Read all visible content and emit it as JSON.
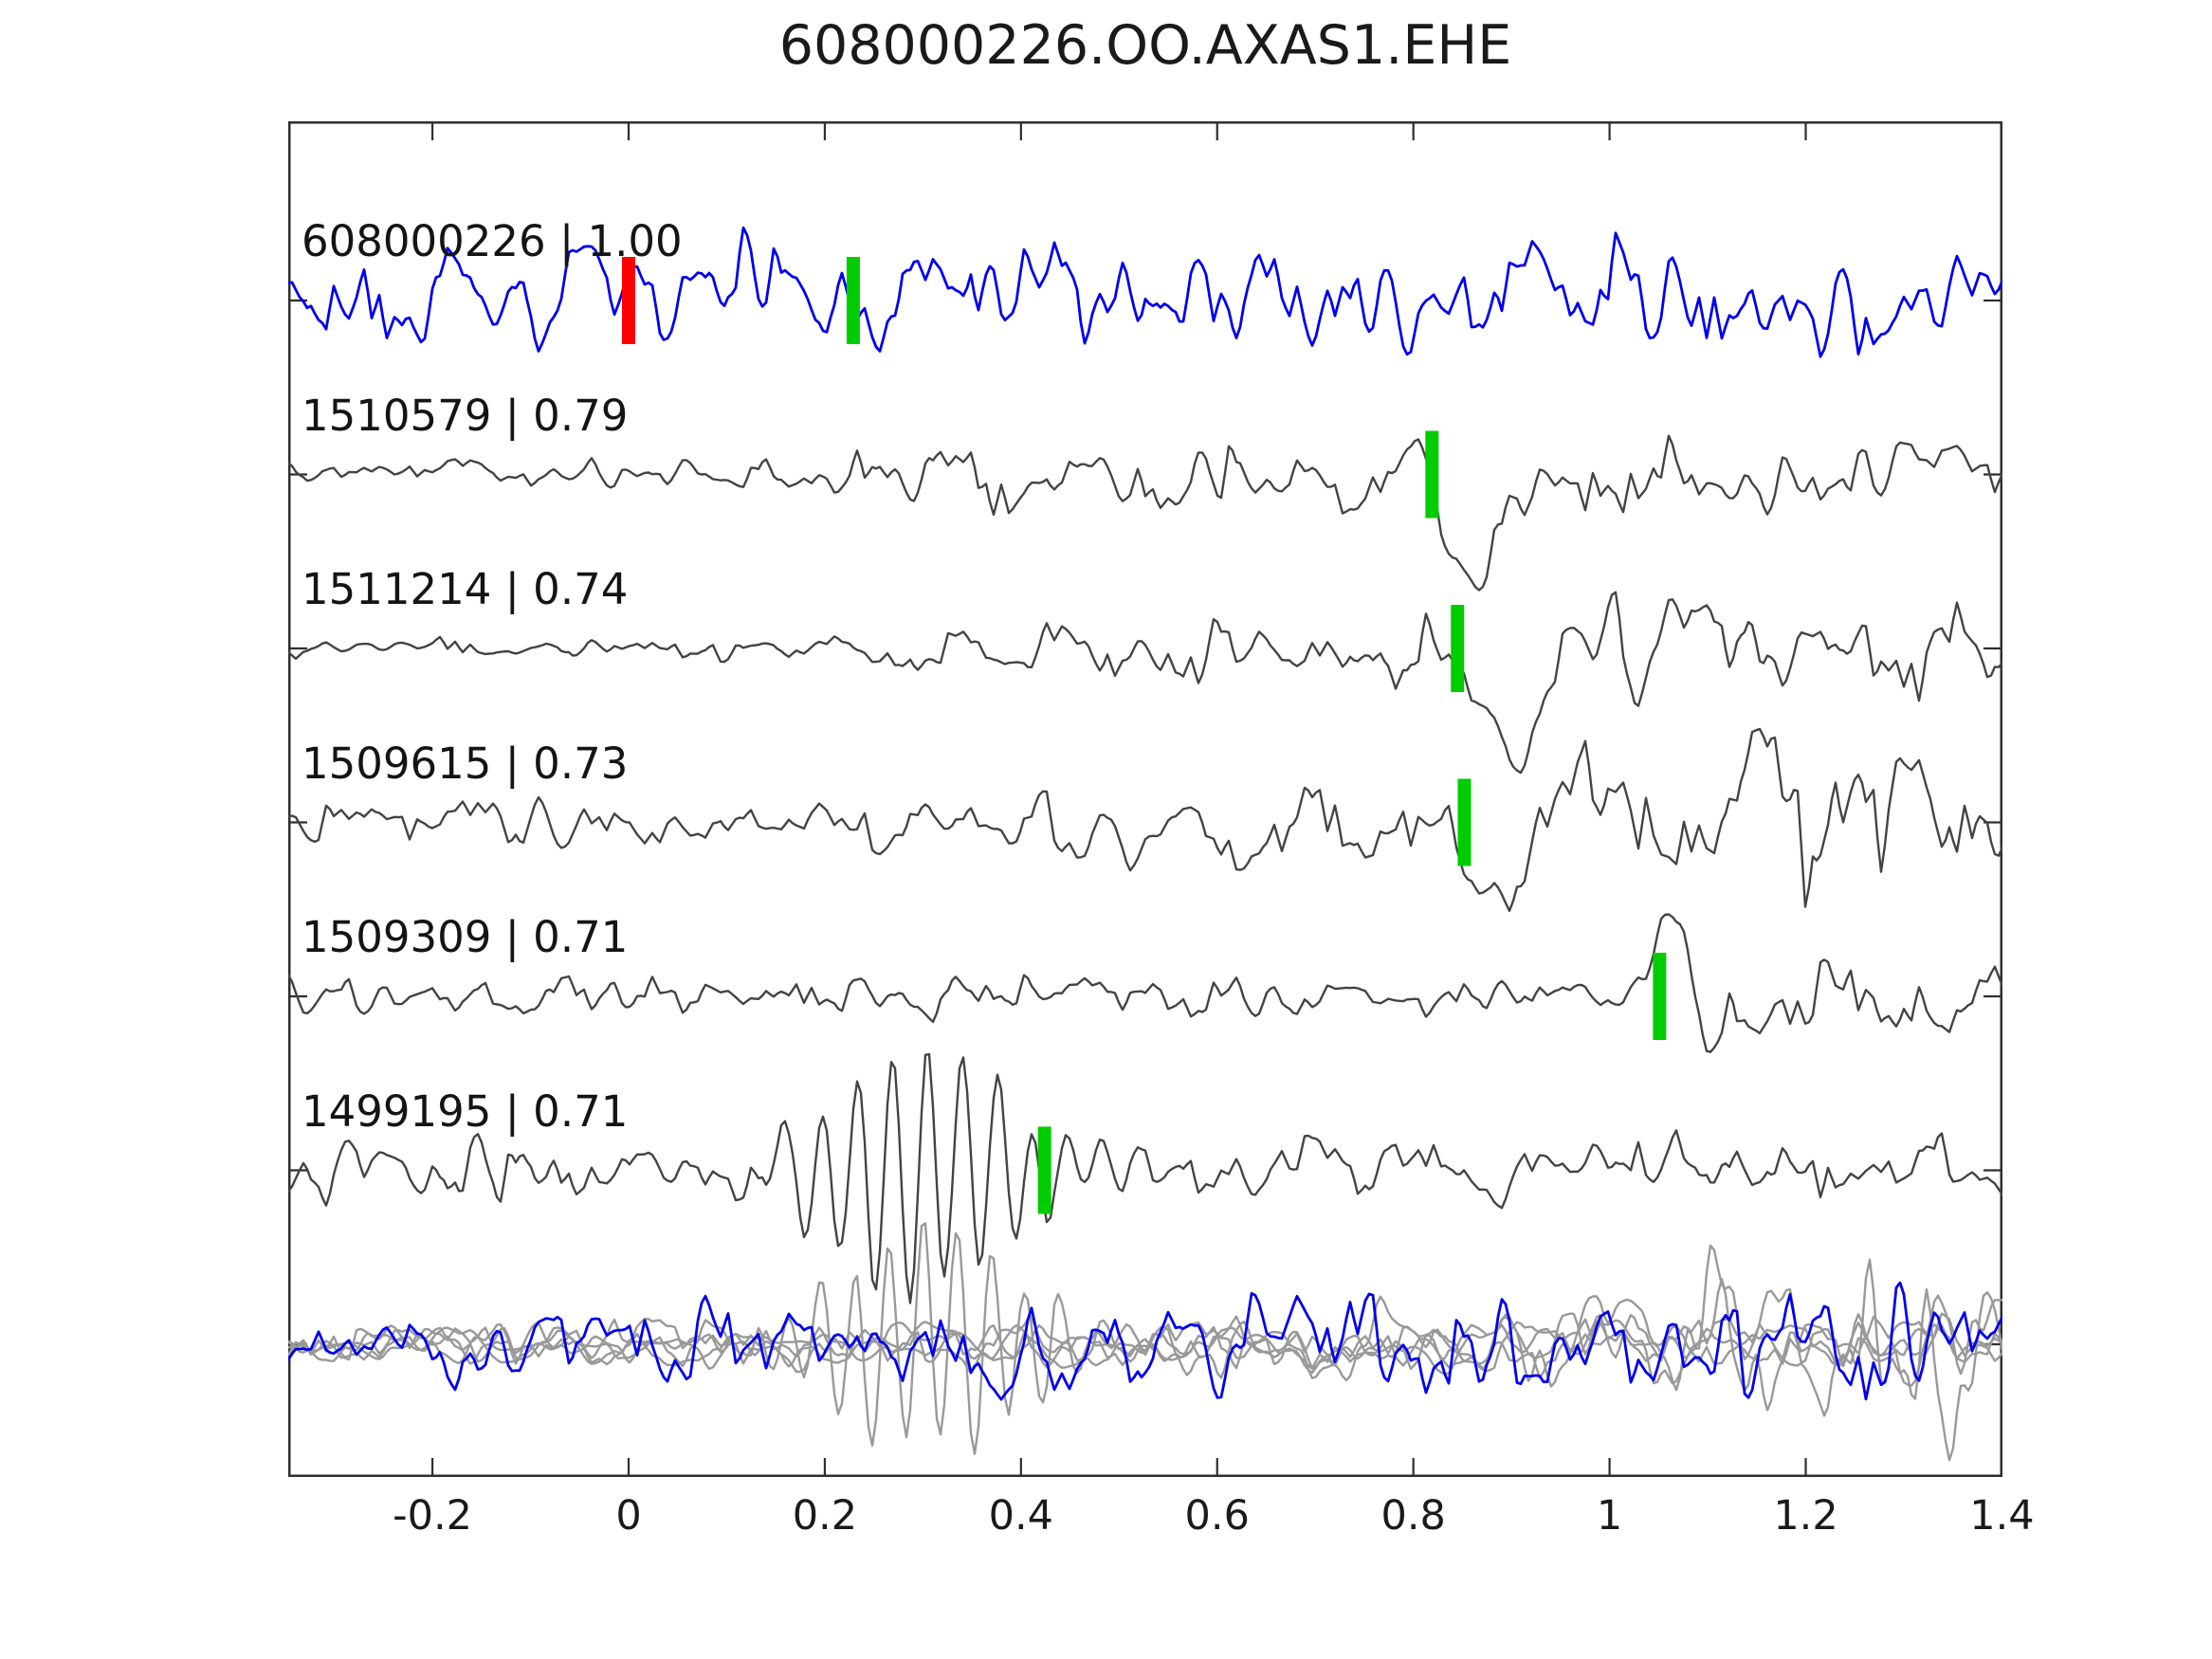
{
  "chart_data": {
    "type": "line",
    "kind": "seismic-waveform-template-matching",
    "title": "608000226.OO.AXAS1.EHE",
    "xlabel": "",
    "ylabel": "",
    "x_range": [
      -0.347,
      1.4
    ],
    "grid": false,
    "legend": "none",
    "x_ticks": [
      {
        "value": -0.2,
        "label": "-0.2"
      },
      {
        "value": 0,
        "label": "0"
      },
      {
        "value": 0.2,
        "label": "0.2"
      },
      {
        "value": 0.4,
        "label": "0.4"
      },
      {
        "value": 0.6,
        "label": "0.6"
      },
      {
        "value": 0.8,
        "label": "0.8"
      },
      {
        "value": 1,
        "label": "1"
      },
      {
        "value": 1.2,
        "label": "1.2"
      },
      {
        "value": 1.4,
        "label": "1.4"
      }
    ],
    "colors": {
      "template_trace": "#0000ee",
      "detection_trace": "#434343",
      "overlay_trace": "#999999",
      "pick_marker": "#00cc00",
      "origin_marker": "#ff0000",
      "axis": "#2e2e2e",
      "text": "#1a1a1a"
    },
    "traces": [
      {
        "label": "608000226 | 1.00",
        "id": "608000226",
        "correlation": "1.00",
        "color": "#0000ee",
        "lw": 2.8,
        "seed": 101,
        "g1": 5,
        "g2": 2,
        "env": [
          [
            -0.35,
            48
          ],
          [
            0.25,
            55
          ],
          [
            0.55,
            50
          ],
          [
            0.8,
            58
          ],
          [
            1.05,
            52
          ],
          [
            1.4,
            50
          ]
        ],
        "pulses": [],
        "bursts": [],
        "markers": [
          {
            "x": 0.0,
            "color": "#ff0000"
          },
          {
            "x": 0.229,
            "color": "#00cc00"
          }
        ]
      },
      {
        "label": "1510579 | 0.79",
        "id": "1510579",
        "correlation": "0.79",
        "color": "#434343",
        "lw": 2.4,
        "seed": 202,
        "g1": 5,
        "g2": 2,
        "env": [
          [
            -0.35,
            13
          ],
          [
            0.2,
            14
          ],
          [
            0.28,
            32
          ],
          [
            0.4,
            36
          ],
          [
            0.6,
            33
          ],
          [
            0.75,
            30
          ],
          [
            0.83,
            22
          ],
          [
            0.92,
            38
          ],
          [
            1.05,
            38
          ],
          [
            1.2,
            32
          ],
          [
            1.4,
            26
          ]
        ],
        "pulses": [
          {
            "x": 0.858,
            "w": 26,
            "a": 108
          },
          {
            "x": 0.805,
            "w": 14,
            "a": -38
          }
        ],
        "bursts": [],
        "markers": [
          {
            "x": 0.819,
            "color": "#00cc00"
          }
        ]
      },
      {
        "label": "1511214 | 0.74",
        "id": "1511214",
        "correlation": "0.74",
        "color": "#434343",
        "lw": 2.4,
        "seed": 303,
        "g1": 5,
        "g2": 2,
        "env": [
          [
            -0.35,
            11
          ],
          [
            0.22,
            12
          ],
          [
            0.32,
            24
          ],
          [
            0.55,
            26
          ],
          [
            0.75,
            30
          ],
          [
            0.85,
            30
          ],
          [
            0.95,
            42
          ],
          [
            1.08,
            52
          ],
          [
            1.2,
            45
          ],
          [
            1.4,
            34
          ]
        ],
        "pulses": [
          {
            "x": 0.905,
            "w": 30,
            "a": 112
          },
          {
            "x": 0.96,
            "w": 22,
            "a": -55
          }
        ],
        "bursts": [],
        "markers": [
          {
            "x": 0.845,
            "color": "#00cc00"
          }
        ]
      },
      {
        "label": "1509615 | 0.73",
        "id": "1509615",
        "correlation": "0.73",
        "color": "#434343",
        "lw": 2.4,
        "seed": 404,
        "g1": 6,
        "g2": 2,
        "env": [
          [
            -0.35,
            22
          ],
          [
            0.2,
            26
          ],
          [
            0.45,
            34
          ],
          [
            0.65,
            40
          ],
          [
            0.8,
            34
          ],
          [
            0.95,
            45
          ],
          [
            1.05,
            70
          ],
          [
            1.15,
            85
          ],
          [
            1.28,
            82
          ],
          [
            1.4,
            58
          ]
        ],
        "pulses": [
          {
            "x": 0.875,
            "w": 28,
            "a": 82
          },
          {
            "x": 1.0,
            "w": 40,
            "a": -60
          }
        ],
        "bursts": [],
        "markers": [
          {
            "x": 0.852,
            "color": "#00cc00"
          }
        ]
      },
      {
        "label": "1509309 | 0.71",
        "id": "1509309",
        "correlation": "0.71",
        "color": "#434343",
        "lw": 2.4,
        "seed": 505,
        "g1": 5,
        "g2": 2,
        "env": [
          [
            -0.35,
            17
          ],
          [
            0.3,
            20
          ],
          [
            0.6,
            19
          ],
          [
            0.9,
            15
          ],
          [
            1.02,
            14
          ],
          [
            1.12,
            30
          ],
          [
            1.22,
            36
          ],
          [
            1.4,
            24
          ]
        ],
        "pulses": [
          {
            "x": 1.066,
            "w": 15,
            "a": -112
          },
          {
            "x": 1.1,
            "w": 18,
            "a": 80
          }
        ],
        "bursts": [],
        "markers": [
          {
            "x": 1.051,
            "color": "#00cc00"
          }
        ]
      },
      {
        "label": "1499195 | 0.71",
        "id": "1499195",
        "correlation": "0.71",
        "color": "#434343",
        "lw": 2.4,
        "seed": 606,
        "g1": 5,
        "g2": 2,
        "env": [
          [
            -0.35,
            30
          ],
          [
            0.05,
            33
          ],
          [
            0.14,
            28
          ],
          [
            0.2,
            22
          ],
          [
            0.5,
            22
          ],
          [
            0.6,
            30
          ],
          [
            0.8,
            30
          ],
          [
            1.0,
            31
          ],
          [
            1.2,
            30
          ],
          [
            1.4,
            34
          ]
        ],
        "pulses": [],
        "bursts": [
          {
            "x0": 0.135,
            "x1": 0.52,
            "period": 37,
            "amp": 128,
            "center": 0.305,
            "width": 0.085
          }
        ],
        "markers": [
          {
            "x": 0.424,
            "color": "#00cc00"
          }
        ]
      },
      {
        "label": "",
        "id": "stack-overlay",
        "correlation": "",
        "members": [
          {
            "color": "#999999",
            "lw": 2.4,
            "seed": 711,
            "g1": 5,
            "g2": 2,
            "env": [
              [
                -0.35,
                20
              ],
              [
                0.3,
                22
              ],
              [
                0.6,
                20
              ],
              [
                0.9,
                26
              ],
              [
                1.1,
                24
              ],
              [
                1.4,
                22
              ]
            ],
            "pulses": [],
            "bursts": []
          },
          {
            "color": "#999999",
            "lw": 2.4,
            "seed": 722,
            "g1": 5,
            "g2": 2,
            "env": [
              [
                -0.35,
                16
              ],
              [
                0.2,
                18
              ],
              [
                0.6,
                18
              ],
              [
                1.4,
                18
              ]
            ],
            "pulses": [],
            "bursts": [
              {
                "x0": 0.135,
                "x1": 0.55,
                "period": 36,
                "amp": 118,
                "center": 0.31,
                "width": 0.09
              }
            ]
          },
          {
            "color": "#999999",
            "lw": 2.4,
            "seed": 733,
            "g1": 8,
            "g2": 3,
            "env": [
              [
                -0.35,
                18
              ],
              [
                0.8,
                20
              ],
              [
                0.95,
                45
              ],
              [
                1.1,
                95
              ],
              [
                1.25,
                105
              ],
              [
                1.4,
                85
              ]
            ],
            "pulses": [],
            "bursts": []
          },
          {
            "color": "#999999",
            "lw": 2.4,
            "seed": 744,
            "g1": 7,
            "g2": 3,
            "env": [
              [
                -0.35,
                18
              ],
              [
                0.5,
                20
              ],
              [
                0.75,
                35
              ],
              [
                0.9,
                30
              ],
              [
                1.05,
                45
              ],
              [
                1.2,
                60
              ],
              [
                1.4,
                55
              ]
            ],
            "pulses": [],
            "bursts": []
          },
          {
            "color": "#999999",
            "lw": 2.4,
            "seed": 755,
            "g1": 5,
            "g2": 2,
            "env": [
              [
                -0.35,
                15
              ],
              [
                0.4,
                18
              ],
              [
                0.8,
                22
              ],
              [
                1.0,
                20
              ],
              [
                1.2,
                28
              ],
              [
                1.4,
                30
              ]
            ],
            "pulses": [],
            "bursts": []
          },
          {
            "color": "#0000ee",
            "lw": 2.8,
            "seed": 766,
            "g1": 5,
            "g2": 2,
            "env": [
              [
                -0.35,
                38
              ],
              [
                0.0,
                42
              ],
              [
                0.2,
                40
              ],
              [
                0.45,
                46
              ],
              [
                0.6,
                44
              ],
              [
                0.8,
                50
              ],
              [
                0.95,
                42
              ],
              [
                1.05,
                58
              ],
              [
                1.2,
                50
              ],
              [
                1.4,
                46
              ]
            ],
            "pulses": [],
            "bursts": []
          }
        ],
        "markers": []
      }
    ]
  }
}
